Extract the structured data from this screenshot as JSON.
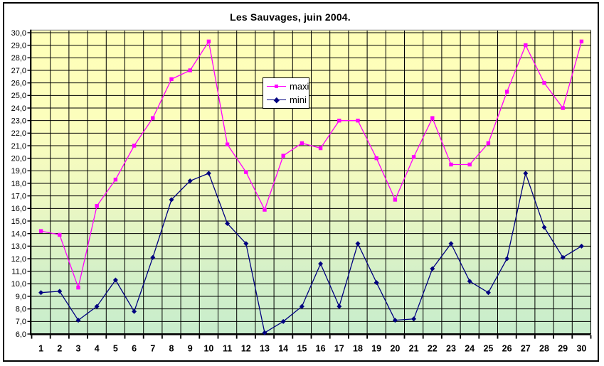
{
  "figure": {
    "background": "#FFFFFF",
    "border_color": "#000000"
  },
  "chart_data": {
    "type": "line",
    "title": "Les Sauvages, juin 2004.",
    "xlabel": "",
    "ylabel": "",
    "categories": [
      1,
      2,
      3,
      4,
      5,
      6,
      7,
      8,
      9,
      10,
      11,
      12,
      13,
      14,
      15,
      16,
      17,
      18,
      19,
      20,
      21,
      22,
      23,
      24,
      25,
      26,
      27,
      28,
      29,
      30
    ],
    "series": [
      {
        "name": "maxi",
        "color": "#FF00FF",
        "marker": "square",
        "values": [
          14.2,
          13.9,
          9.7,
          16.2,
          18.3,
          21.0,
          23.2,
          26.3,
          27.0,
          29.3,
          21.1,
          18.9,
          15.9,
          20.2,
          21.2,
          20.8,
          23.0,
          23.0,
          20.0,
          16.7,
          20.1,
          23.2,
          19.5,
          19.5,
          21.2,
          25.3,
          29.0,
          26.0,
          24.0,
          29.3
        ]
      },
      {
        "name": "mini",
        "color": "#000080",
        "marker": "diamond",
        "values": [
          9.3,
          9.4,
          7.1,
          8.2,
          10.3,
          7.8,
          12.1,
          16.7,
          18.2,
          18.8,
          14.8,
          13.2,
          6.1,
          7.0,
          8.2,
          11.6,
          8.2,
          13.2,
          10.1,
          7.1,
          7.2,
          11.2,
          13.2,
          10.2,
          9.3,
          12.0,
          18.8,
          14.5,
          12.1,
          13.0
        ]
      }
    ],
    "ylim": [
      6.0,
      30.0
    ],
    "ytick_step": 1.0,
    "ytick_labels": [
      "30,0",
      "29,0",
      "28,0",
      "27,0",
      "26,0",
      "25,0",
      "24,0",
      "23,0",
      "22,0",
      "21,0",
      "20,0",
      "19,0",
      "18,0",
      "17,0",
      "16,0",
      "15,0",
      "14,0",
      "13,0",
      "12,0",
      "11,0",
      "10,0",
      "9,0",
      "8,0",
      "7,0",
      "6,0"
    ],
    "grid": "both",
    "gridline_color": "#000000",
    "plot_border_top_color": "#999999",
    "legend_position": "inside-top-center",
    "plot_background": {
      "stops": [
        "#FFFFB8",
        "#FCFEBC",
        "#EDF8C2",
        "#D4F0C8",
        "#C8EDCC"
      ],
      "offsets": [
        0,
        0.3,
        0.55,
        0.8,
        1
      ]
    }
  },
  "legend": {
    "items": [
      {
        "label": "maxi"
      },
      {
        "label": "mini"
      }
    ]
  }
}
